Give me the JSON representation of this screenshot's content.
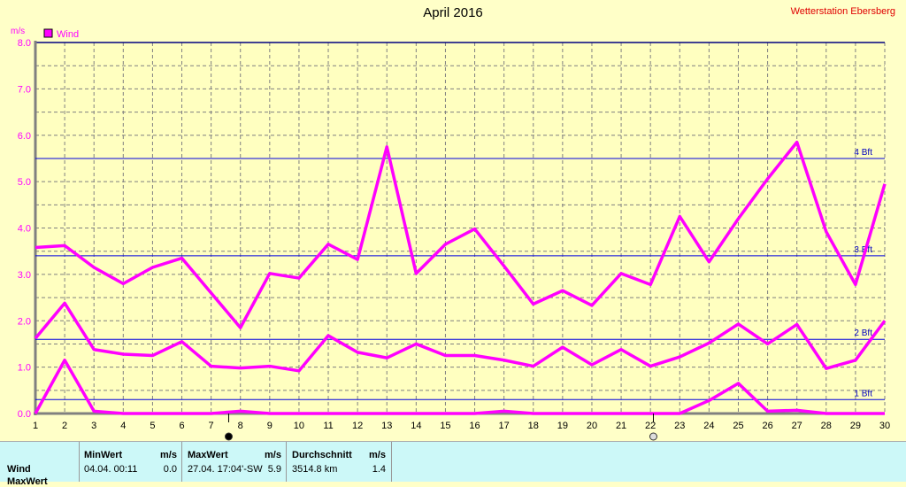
{
  "title": "April 2016",
  "station": "Wetterstation Ebersberg",
  "chart_data": {
    "type": "line",
    "title": "April 2016",
    "ylabel": "m/s",
    "ylim": [
      0,
      8
    ],
    "yticks": [
      "0.0",
      "1.0",
      "2.0",
      "3.0",
      "4.0",
      "5.0",
      "6.0",
      "7.0",
      "8.0"
    ],
    "x": [
      1,
      2,
      3,
      4,
      5,
      6,
      7,
      8,
      9,
      10,
      11,
      12,
      13,
      14,
      15,
      16,
      17,
      18,
      19,
      20,
      21,
      22,
      23,
      24,
      25,
      26,
      27,
      28,
      29,
      30
    ],
    "legend": {
      "label": "Wind",
      "position": "top-left"
    },
    "grid": true,
    "series_color": "#ff00ff",
    "series": [
      {
        "values": [
          3.58,
          3.62,
          3.15,
          2.8,
          3.15,
          3.35,
          2.6,
          1.85,
          3.02,
          2.92,
          3.65,
          3.32,
          5.75,
          3.02,
          3.65,
          3.98,
          3.18,
          2.36,
          2.65,
          2.33,
          3.02,
          2.78,
          4.25,
          3.27,
          4.2,
          5.06,
          5.85,
          3.92,
          2.78,
          4.95
        ]
      },
      {
        "values": [
          1.62,
          2.38,
          1.38,
          1.28,
          1.25,
          1.55,
          1.02,
          0.98,
          1.02,
          0.92,
          1.68,
          1.32,
          1.2,
          1.5,
          1.25,
          1.25,
          1.15,
          1.02,
          1.43,
          1.05,
          1.38,
          1.02,
          1.22,
          1.52,
          1.93,
          1.5,
          1.92,
          0.97,
          1.15,
          2.0
        ]
      },
      {
        "values": [
          0,
          1.15,
          0.05,
          0,
          0,
          0,
          0,
          0.05,
          0,
          0,
          0,
          0,
          0,
          0,
          0,
          0,
          0.05,
          0,
          0,
          0,
          0,
          0,
          0,
          0.28,
          0.65,
          0.05,
          0.07,
          0,
          0,
          0
        ]
      }
    ],
    "reference_lines": [
      {
        "label": "4 Bft",
        "value": 5.5
      },
      {
        "label": "3 Bft",
        "value": 3.4
      },
      {
        "label": "2 Bft",
        "value": 1.6
      },
      {
        "label": "1 Bft",
        "value": 0.3
      }
    ],
    "moon_markers": [
      {
        "phase": "new",
        "day": 7.6
      },
      {
        "phase": "full",
        "day": 22.1
      }
    ]
  },
  "summary": {
    "row_labels": [
      "Wind",
      "MaxWert"
    ],
    "min": {
      "header": "MinWert",
      "unit": "m/s",
      "time": "04.04.  00:11",
      "value": "0.0"
    },
    "max": {
      "header": "MaxWert",
      "unit": "m/s",
      "time": "27.04.  17:04'-SW",
      "value": "5.9"
    },
    "avg": {
      "header": "Durchschnitt",
      "unit": "m/s",
      "distance": "3514.8 km",
      "value": "1.4"
    }
  }
}
